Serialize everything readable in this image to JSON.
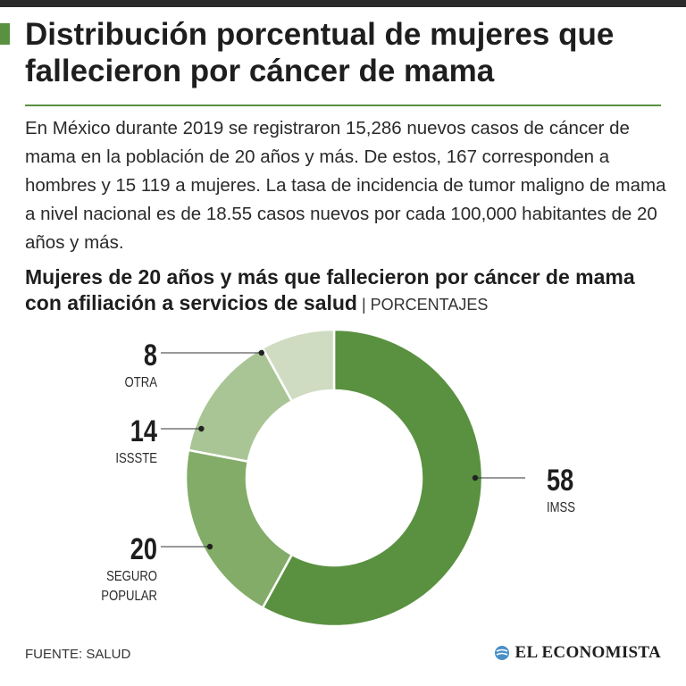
{
  "header": {
    "title": "Distribución porcentual de mujeres que fallecieron por cáncer de mama",
    "intro": "En México durante 2019 se registraron 15,286 nuevos casos de cáncer de mama en la población de 20 años y más. De estos, 167 corresponden a hombres y 15 119 a mujeres. La tasa de incidencia de tumor maligno de mama a nivel nacional es de 18.55 casos nuevos por cada 100,000 habitantes de 20 años y más."
  },
  "chart_title": {
    "main": "Mujeres de 20 años y más que fallecieron por cáncer de mama con afiliación a servicios de salud",
    "separator": " | ",
    "units": "PORCENTAJES"
  },
  "chart_data": {
    "type": "pie",
    "variant": "donut",
    "title": "Mujeres de 20 años y más que fallecieron por cáncer de mama con afiliación a servicios de salud",
    "units": "PORCENTAJES",
    "categories": [
      "IMSS",
      "SEGURO POPULAR",
      "ISSSTE",
      "OTRA"
    ],
    "label_lines": [
      [
        "IMSS"
      ],
      [
        "SEGURO",
        "POPULAR"
      ],
      [
        "ISSSTE"
      ],
      [
        "OTRA"
      ]
    ],
    "values": [
      58,
      20,
      14,
      8
    ],
    "colors": [
      "#5a9140",
      "#82ac68",
      "#aac595",
      "#cfdcc1"
    ]
  },
  "footer": {
    "source": "FUENTE: SALUD",
    "brand": "EL ECONOMISTA",
    "brand_color": "#4a90c8"
  }
}
